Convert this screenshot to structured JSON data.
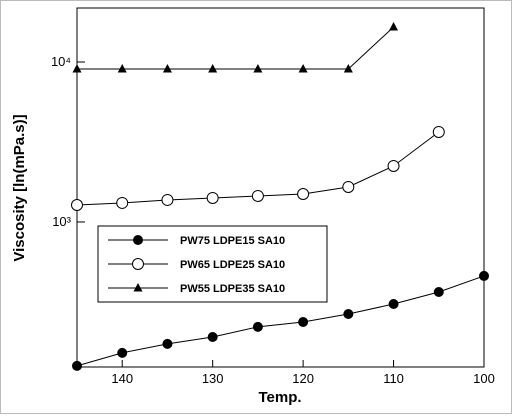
{
  "chart_data": {
    "type": "line",
    "x_label": "Temp.",
    "y_label": "Viscosity [ln(mPa.s)]",
    "x": [
      145,
      140,
      135,
      130,
      125,
      120,
      115,
      110,
      105,
      100
    ],
    "series": [
      {
        "name": "PW75 LDPE15 SA10",
        "color": "#000000",
        "marker": "filled-circle",
        "values": [
          126,
          152,
          173,
          191,
          221,
          237,
          266,
          307,
          365,
          460
        ]
      },
      {
        "name": "PW65 LDPE25 SA10",
        "color": "#000000",
        "marker": "open-circle",
        "values": [
          1277,
          1315,
          1373,
          1413,
          1454,
          1496,
          1655,
          2239,
          3652,
          null
        ]
      },
      {
        "name": "PW55 LDPE35 SA10",
        "color": "#000000",
        "marker": "triangle",
        "values": [
          9040,
          9040,
          9040,
          9040,
          9040,
          9040,
          9040,
          16550,
          null,
          null
        ]
      }
    ],
    "xlim": [
      145,
      100
    ],
    "xticks": [
      140,
      130,
      120,
      110,
      100
    ],
    "ylim": [
      124,
      21750
    ],
    "y_log": true,
    "yticks": [
      {
        "value": 1000,
        "label": "10³"
      },
      {
        "value": 10000,
        "label": "10⁴"
      }
    ],
    "legend": "lower-left"
  }
}
